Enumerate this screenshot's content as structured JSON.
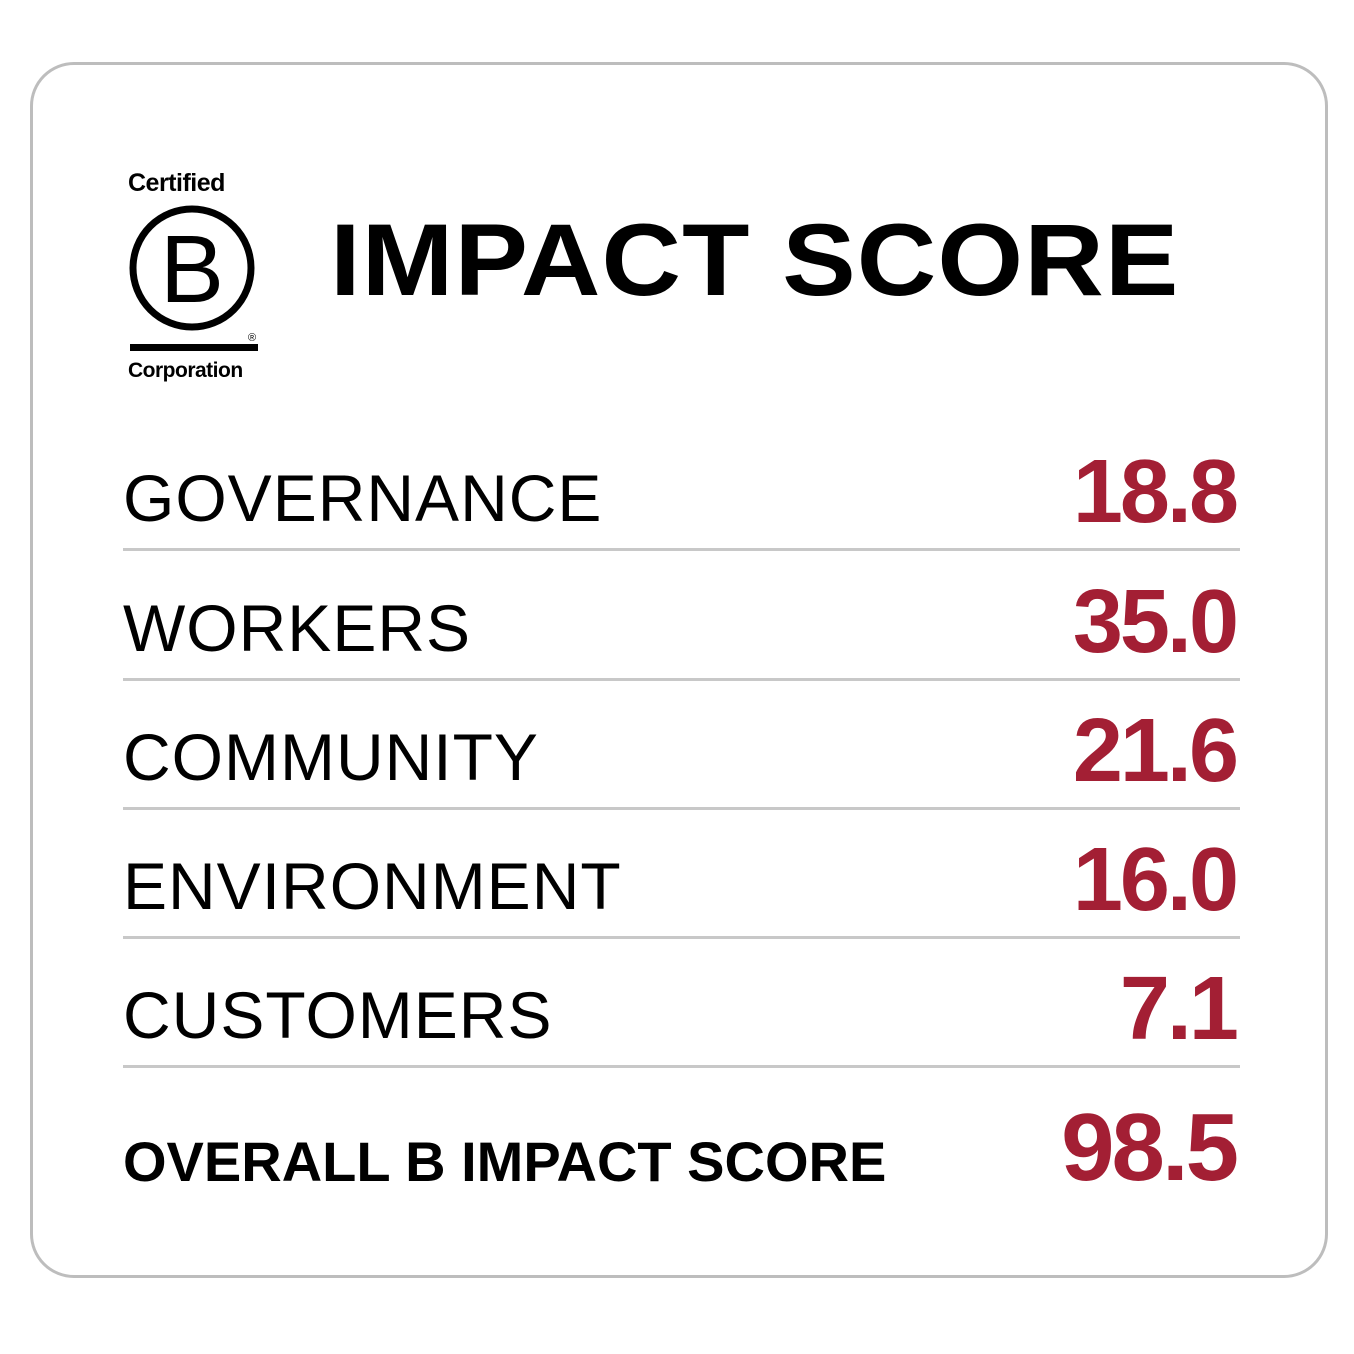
{
  "logo": {
    "top_text": "Certified",
    "letter": "B",
    "registered": "®",
    "bottom_text": "Corporation"
  },
  "title": "IMPACT SCORE",
  "scores": [
    {
      "label": "GOVERNANCE",
      "value": "18.8"
    },
    {
      "label": "WORKERS",
      "value": "35.0"
    },
    {
      "label": "COMMUNITY",
      "value": "21.6"
    },
    {
      "label": "ENVIRONMENT",
      "value": "16.0"
    },
    {
      "label": "CUSTOMERS",
      "value": "7.1"
    }
  ],
  "overall": {
    "label": "OVERALL B IMPACT SCORE",
    "value": "98.5"
  },
  "colors": {
    "accent": "#a31f34",
    "border": "#bdbdbd",
    "divider": "#c8c8c8",
    "text": "#000000"
  }
}
